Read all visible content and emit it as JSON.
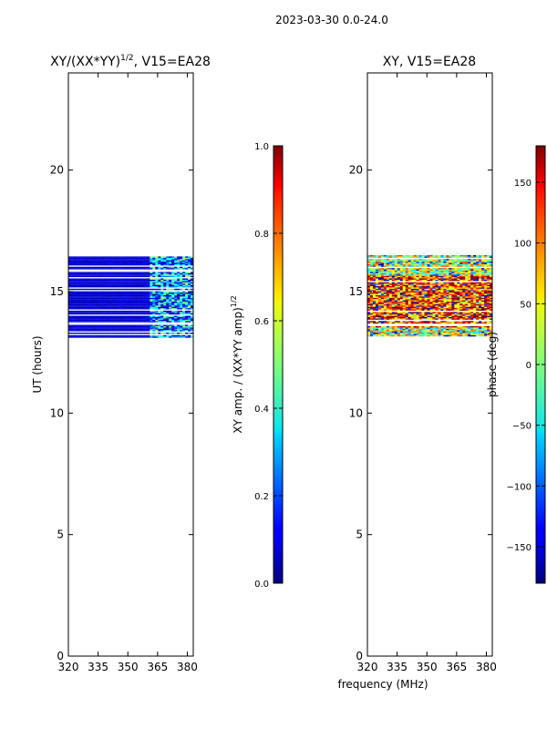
{
  "page_title": "2023-03-30 0.0-24.0",
  "colors": {
    "background": "#ffffff",
    "axis": "#000000",
    "no_data": "#ffffff"
  },
  "chart_data": [
    {
      "type": "heatmap",
      "title": "XY/(XX*YY)",
      "title_superscript": "1/2",
      "title_suffix": ", V15=EA28",
      "xlabel": "",
      "ylabel": "UT (hours)",
      "xlim": [
        320,
        383
      ],
      "ylim": [
        0,
        24
      ],
      "xticks": [
        320,
        335,
        350,
        365,
        380
      ],
      "yticks": [
        0,
        5,
        10,
        15,
        20
      ],
      "data_ut_range": [
        13.1,
        16.5
      ],
      "data_freq_range": [
        320,
        383
      ],
      "colorbar": {
        "label": "XY amp. / (XX*YY amp)",
        "label_superscript": "1/2",
        "range": [
          0.0,
          1.0
        ],
        "ticks": [
          "0.0",
          "0.2",
          "0.4",
          "0.6",
          "0.8",
          "1.0"
        ],
        "colormap": "jet"
      }
    },
    {
      "type": "heatmap",
      "title": "XY, V15=EA28",
      "xlabel": "frequency (MHz)",
      "ylabel": "",
      "xlim": [
        320,
        383
      ],
      "ylim": [
        0,
        24
      ],
      "xticks": [
        320,
        335,
        350,
        365,
        380
      ],
      "yticks": [
        0,
        5,
        10,
        15,
        20
      ],
      "data_ut_range": [
        13.1,
        16.5
      ],
      "data_freq_range": [
        320,
        383
      ],
      "colorbar": {
        "label": "phase (deg)",
        "range": [
          -180,
          180
        ],
        "ticks": [
          "−150",
          "−100",
          "−50",
          "0",
          "50",
          "100",
          "150"
        ],
        "colormap": "jet"
      }
    }
  ]
}
